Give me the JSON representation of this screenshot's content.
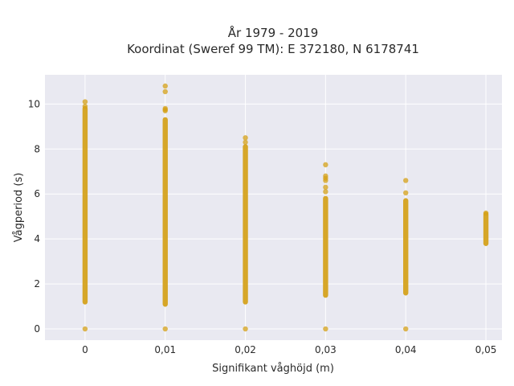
{
  "chart_data": {
    "type": "scatter",
    "title_line1": "År 1979 - 2019",
    "title_line2": "Koordinat (Sweref 99 TM): E 372180, N 6178741",
    "xlabel": "Signifikant våghöjd (m)",
    "ylabel": "Vågperiod (s)",
    "xlim": [
      -0.005,
      0.052
    ],
    "ylim": [
      -0.5,
      11.3
    ],
    "x_ticks": [
      0,
      0.01,
      0.02,
      0.03,
      0.04,
      0.05
    ],
    "x_tick_labels": [
      "0",
      "0,01",
      "0,02",
      "0,03",
      "0,04",
      "0,05"
    ],
    "y_ticks": [
      0,
      2,
      4,
      6,
      8,
      10
    ],
    "y_tick_labels": [
      "0",
      "2",
      "4",
      "6",
      "8",
      "10"
    ],
    "grid": true,
    "colors": {
      "plot_bg": "#e9e9f1",
      "grid": "#ffffff",
      "marker": "#d4a017"
    },
    "columns": [
      {
        "x": 0,
        "min": 1.2,
        "max": 9.8,
        "outliers": [
          0,
          10.1,
          9.9
        ]
      },
      {
        "x": 0.01,
        "min": 1.1,
        "max": 9.3,
        "outliers": [
          0,
          10.8,
          10.55,
          9.8,
          9.75,
          9.7
        ]
      },
      {
        "x": 0.02,
        "min": 1.2,
        "max": 8.1,
        "outliers": [
          0,
          8.5,
          8.3
        ]
      },
      {
        "x": 0.03,
        "min": 1.5,
        "max": 5.8,
        "outliers": [
          0,
          7.3,
          6.8,
          6.7,
          6.6,
          6.3,
          6.1
        ]
      },
      {
        "x": 0.04,
        "min": 1.6,
        "max": 5.7,
        "outliers": [
          0,
          6.6,
          6.05
        ]
      },
      {
        "x": 0.05,
        "min": 3.8,
        "max": 5.1,
        "outliers": [
          5.15
        ]
      }
    ]
  }
}
